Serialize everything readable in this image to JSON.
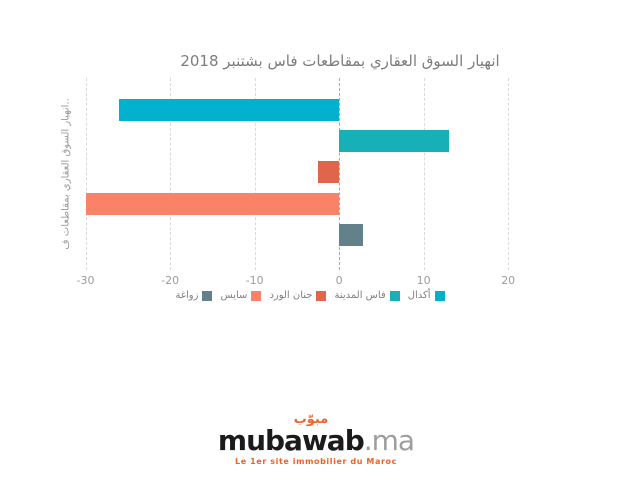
{
  "title": "انهيار السوق العقاري بمقاطعات فاس بشتنبر 2018",
  "y_axis_label": "..انهيار السوق العقاري بمقاطعات ف",
  "chart_data": {
    "type": "bar",
    "orientation": "horizontal",
    "title": "انهيار السوق العقاري بمقاطعات فاس بشتنبر 2018",
    "categories": [
      "أكدال",
      "فاس المدينة",
      "جنان الورد",
      "سايس",
      "زواغة"
    ],
    "keys": [
      "agdal",
      "fes-medina",
      "jnan-lward",
      "sais",
      "zouagha"
    ],
    "values": [
      -26,
      13,
      -2.5,
      -30,
      2.8
    ],
    "colors": [
      "#02b1ce",
      "#16b0b6",
      "#e0654a",
      "#f98268",
      "#63818b"
    ],
    "x_ticks": [
      -30,
      -20,
      -10,
      0,
      10,
      20
    ],
    "xlim": [
      -31.6,
      21.4
    ],
    "xlabel": "",
    "ylabel": "..انهيار السوق العقاري بمقاطعات ف",
    "grid": "vertical-dashed",
    "legend_position": "bottom-center",
    "zero_line_color": "#a8a8a8",
    "gridline_color": "#d9d9d9"
  },
  "logo": {
    "arabic": "مبوّب",
    "brand": "mubawab",
    "tld": ".ma",
    "tagline": "Le 1er site immobilier du Maroc",
    "accent_color": "#ec6328"
  }
}
